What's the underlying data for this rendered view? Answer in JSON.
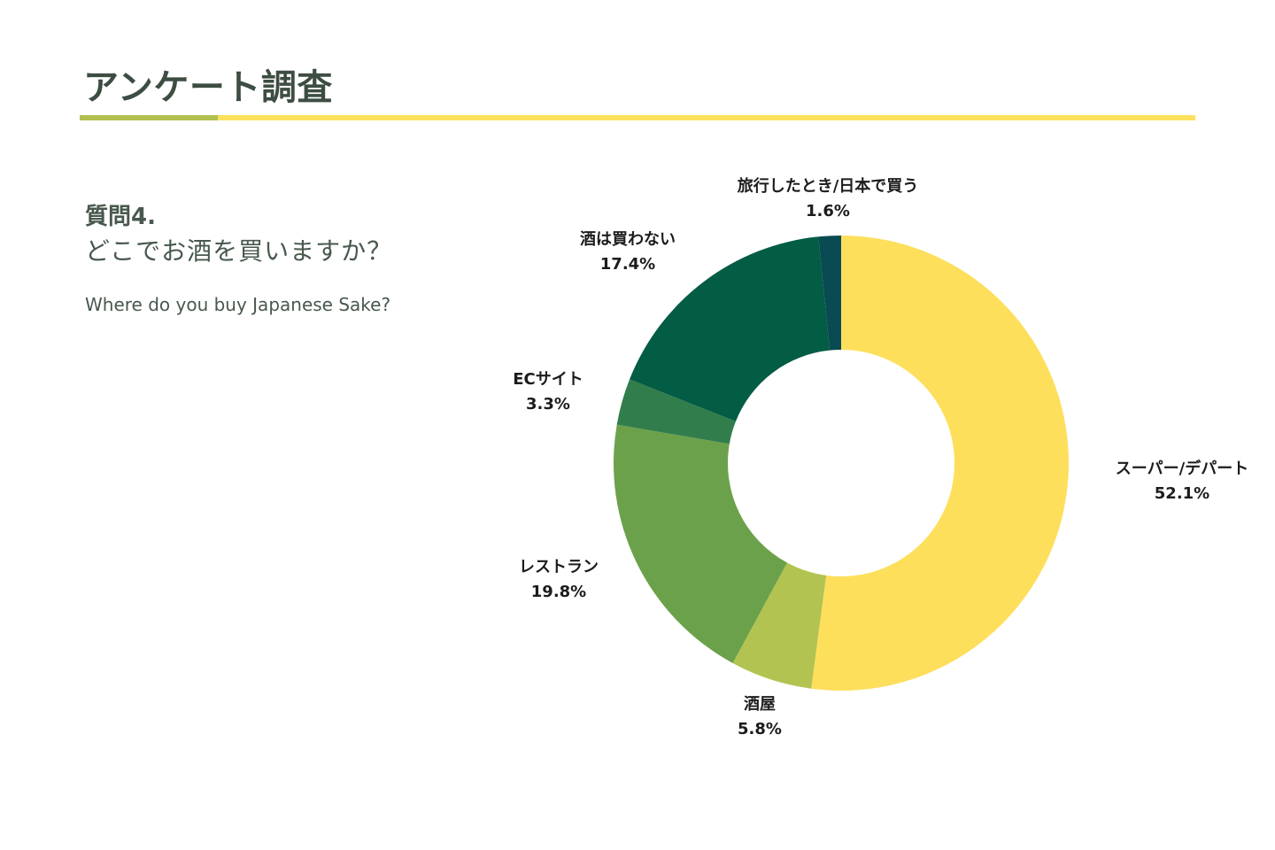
{
  "header": {
    "title": "アンケート調査"
  },
  "question": {
    "number": "質問4.",
    "text": "どこでお酒を買いますか？",
    "english": "Where do you buy Japanese Sake?"
  },
  "colors": {
    "title_rule": "#fde15c",
    "title_rule_accent": "#b1c04f"
  },
  "chart_data": {
    "type": "pie",
    "variant": "donut",
    "start_angle_deg": 0,
    "direction": "clockwise",
    "slices": [
      {
        "label": "スーパー/デパート",
        "value": 52.1,
        "display": "52.1%",
        "color": "#fddf5c"
      },
      {
        "label": "酒屋",
        "value": 5.8,
        "display": "5.8%",
        "color": "#b3c351"
      },
      {
        "label": "レストラン",
        "value": 19.8,
        "display": "19.8%",
        "color": "#6ca14b"
      },
      {
        "label": "ECサイト",
        "value": 3.3,
        "display": "3.3%",
        "color": "#327d4c"
      },
      {
        "label": "酒は買わない",
        "value": 17.4,
        "display": "17.4%",
        "color": "#035c44"
      },
      {
        "label": "旅行したとき/日本で買う",
        "value": 1.6,
        "display": "1.6%",
        "color": "#0a4a52"
      }
    ]
  }
}
